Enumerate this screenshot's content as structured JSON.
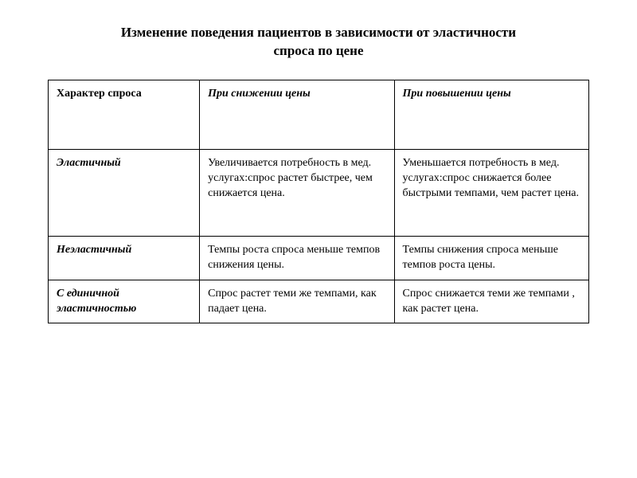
{
  "title_line1": "Изменение поведения пациентов в зависимости от эластичности",
  "title_line2": "спроса по цене",
  "table": {
    "headers": {
      "col_a": "Характер спроса",
      "col_b": "При снижении цены",
      "col_c": "При повышении цены"
    },
    "rows": [
      {
        "label": "Эластичный",
        "decrease": "Увеличивается потребность в мед. услугах:спрос растет быстрее, чем снижается цена.",
        "increase": "Уменьшается потребность в мед. услугах:спрос снижается более быстрыми темпами, чем растет цена."
      },
      {
        "label": "Неэластичный",
        "decrease": "Темпы роста спроса меньше темпов снижения цены.",
        "increase": "Темпы снижения спроса меньше темпов роста цены."
      },
      {
        "label": "С единичной эластичностью",
        "decrease": "Спрос растет теми же темпами, как падает цена.",
        "increase": "Спрос снижается теми же темпами , как растет цена."
      }
    ]
  },
  "style": {
    "font_family": "Times New Roman",
    "title_fontsize_pt": 17,
    "cell_fontsize_pt": 14,
    "text_color": "#000000",
    "background_color": "#ffffff",
    "border_color": "#000000",
    "column_widths_pct": [
      28,
      36,
      36
    ]
  }
}
